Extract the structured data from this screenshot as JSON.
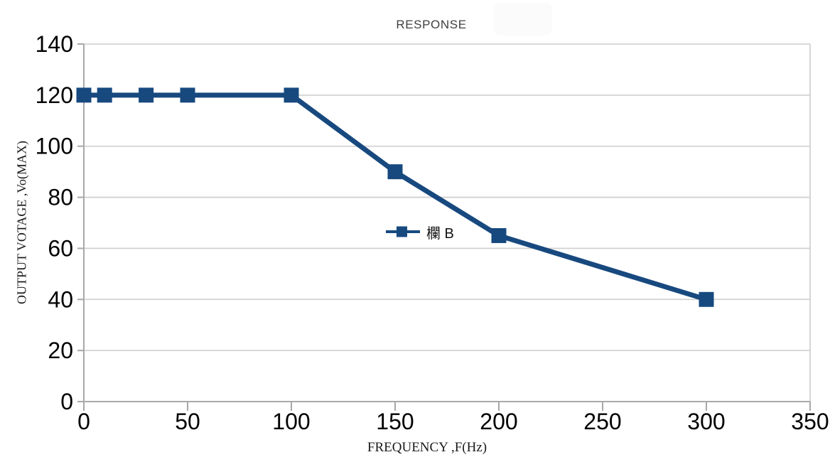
{
  "page": {
    "background": "#ffffff"
  },
  "chart_data": {
    "type": "line",
    "title": "RESPONSE",
    "xlabel": "FREQUENCY ,F(Hz)",
    "ylabel": "OUTPUT VOTAGE ,Vo(MAX)",
    "x": [
      0,
      10,
      30,
      50,
      100,
      150,
      200,
      300
    ],
    "series": [
      {
        "name": "欄 B",
        "values": [
          120,
          120,
          120,
          120,
          120,
          90,
          65,
          40
        ]
      }
    ],
    "xlim": [
      0,
      350
    ],
    "ylim": [
      0,
      140
    ],
    "x_ticks": [
      0,
      50,
      100,
      150,
      200,
      250,
      300,
      350
    ],
    "y_ticks": [
      0,
      20,
      40,
      60,
      80,
      100,
      120,
      140
    ],
    "grid": "horizontal-only",
    "legend_position": "center-of-plot",
    "marker": "filled-square",
    "colors": {
      "series": "#17497f",
      "gridline": "#d2d2d2",
      "axis": "#a8a8a8",
      "tick_label": "#000000",
      "title": "#3f3f3f",
      "axis_title": "#1a1a1a"
    }
  }
}
